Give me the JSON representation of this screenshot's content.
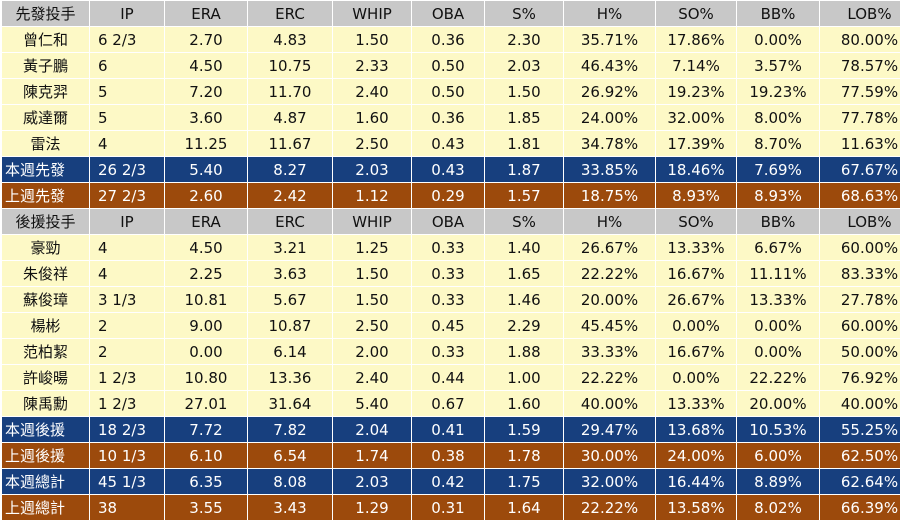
{
  "columns": [
    "IP",
    "ERA",
    "ERC",
    "WHIP",
    "OBA",
    "S%",
    "H%",
    "SO%",
    "BB%",
    "LOB%"
  ],
  "starters": {
    "header": "先發投手",
    "rows": [
      {
        "name": "曾仁和",
        "v": [
          "6 2/3",
          "2.70",
          "4.83",
          "1.50",
          "0.36",
          "2.30",
          "35.71%",
          "17.86%",
          "0.00%",
          "80.00%"
        ]
      },
      {
        "name": "黃子鵬",
        "v": [
          "6",
          "4.50",
          "10.75",
          "2.33",
          "0.50",
          "2.03",
          "46.43%",
          "7.14%",
          "3.57%",
          "78.57%"
        ]
      },
      {
        "name": "陳克羿",
        "v": [
          "5",
          "7.20",
          "11.70",
          "2.40",
          "0.50",
          "1.50",
          "26.92%",
          "19.23%",
          "19.23%",
          "77.59%"
        ]
      },
      {
        "name": "威達爾",
        "v": [
          "5",
          "3.60",
          "4.87",
          "1.60",
          "0.36",
          "1.85",
          "24.00%",
          "32.00%",
          "8.00%",
          "77.78%"
        ]
      },
      {
        "name": "雷法",
        "v": [
          "4",
          "11.25",
          "11.67",
          "2.50",
          "0.43",
          "1.81",
          "34.78%",
          "17.39%",
          "8.70%",
          "11.63%"
        ]
      }
    ],
    "this_week": {
      "name": "本週先發",
      "v": [
        "26 2/3",
        "5.40",
        "8.27",
        "2.03",
        "0.43",
        "1.87",
        "33.85%",
        "18.46%",
        "7.69%",
        "67.67%"
      ]
    },
    "last_week": {
      "name": "上週先發",
      "v": [
        "27 2/3",
        "2.60",
        "2.42",
        "1.12",
        "0.29",
        "1.57",
        "18.75%",
        "8.93%",
        "8.93%",
        "68.63%"
      ]
    }
  },
  "relievers": {
    "header": "後援投手",
    "rows": [
      {
        "name": "豪勁",
        "v": [
          "4",
          "4.50",
          "3.21",
          "1.25",
          "0.33",
          "1.40",
          "26.67%",
          "13.33%",
          "6.67%",
          "60.00%"
        ]
      },
      {
        "name": "朱俊祥",
        "v": [
          "4",
          "2.25",
          "3.63",
          "1.50",
          "0.33",
          "1.65",
          "22.22%",
          "16.67%",
          "11.11%",
          "83.33%"
        ]
      },
      {
        "name": "蘇俊璋",
        "v": [
          "3 1/3",
          "10.81",
          "5.67",
          "1.50",
          "0.33",
          "1.46",
          "20.00%",
          "26.67%",
          "13.33%",
          "27.78%"
        ]
      },
      {
        "name": "楊彬",
        "v": [
          "2",
          "9.00",
          "10.87",
          "2.50",
          "0.45",
          "2.29",
          "45.45%",
          "0.00%",
          "0.00%",
          "60.00%"
        ]
      },
      {
        "name": "范柏絜",
        "v": [
          "2",
          "0.00",
          "6.14",
          "2.00",
          "0.33",
          "1.88",
          "33.33%",
          "16.67%",
          "0.00%",
          "50.00%"
        ]
      },
      {
        "name": "許峻暘",
        "v": [
          "1 2/3",
          "10.80",
          "13.36",
          "2.40",
          "0.44",
          "1.00",
          "22.22%",
          "0.00%",
          "22.22%",
          "76.92%"
        ]
      },
      {
        "name": "陳禹勳",
        "v": [
          "1 2/3",
          "27.01",
          "31.64",
          "5.40",
          "0.67",
          "1.60",
          "40.00%",
          "13.33%",
          "20.00%",
          "40.00%"
        ]
      }
    ],
    "this_week": {
      "name": "本週後援",
      "v": [
        "18 2/3",
        "7.72",
        "7.82",
        "2.04",
        "0.41",
        "1.59",
        "29.47%",
        "13.68%",
        "10.53%",
        "55.25%"
      ]
    },
    "last_week": {
      "name": "上週後援",
      "v": [
        "10 1/3",
        "6.10",
        "6.54",
        "1.74",
        "0.38",
        "1.78",
        "30.00%",
        "24.00%",
        "6.00%",
        "62.50%"
      ]
    }
  },
  "totals": {
    "this_week": {
      "name": "本週總計",
      "v": [
        "45 1/3",
        "6.35",
        "8.08",
        "2.03",
        "0.42",
        "1.75",
        "32.00%",
        "16.44%",
        "8.89%",
        "62.64%"
      ]
    },
    "last_week": {
      "name": "上週總計",
      "v": [
        "38",
        "3.55",
        "3.43",
        "1.29",
        "0.31",
        "1.64",
        "22.22%",
        "13.58%",
        "8.02%",
        "66.39%"
      ]
    }
  },
  "colors": {
    "header_bg": "#c8c8c8",
    "row_bg": "#fdf9c6",
    "this_week_bg": "#173f7e",
    "last_week_bg": "#9c4a0c"
  }
}
